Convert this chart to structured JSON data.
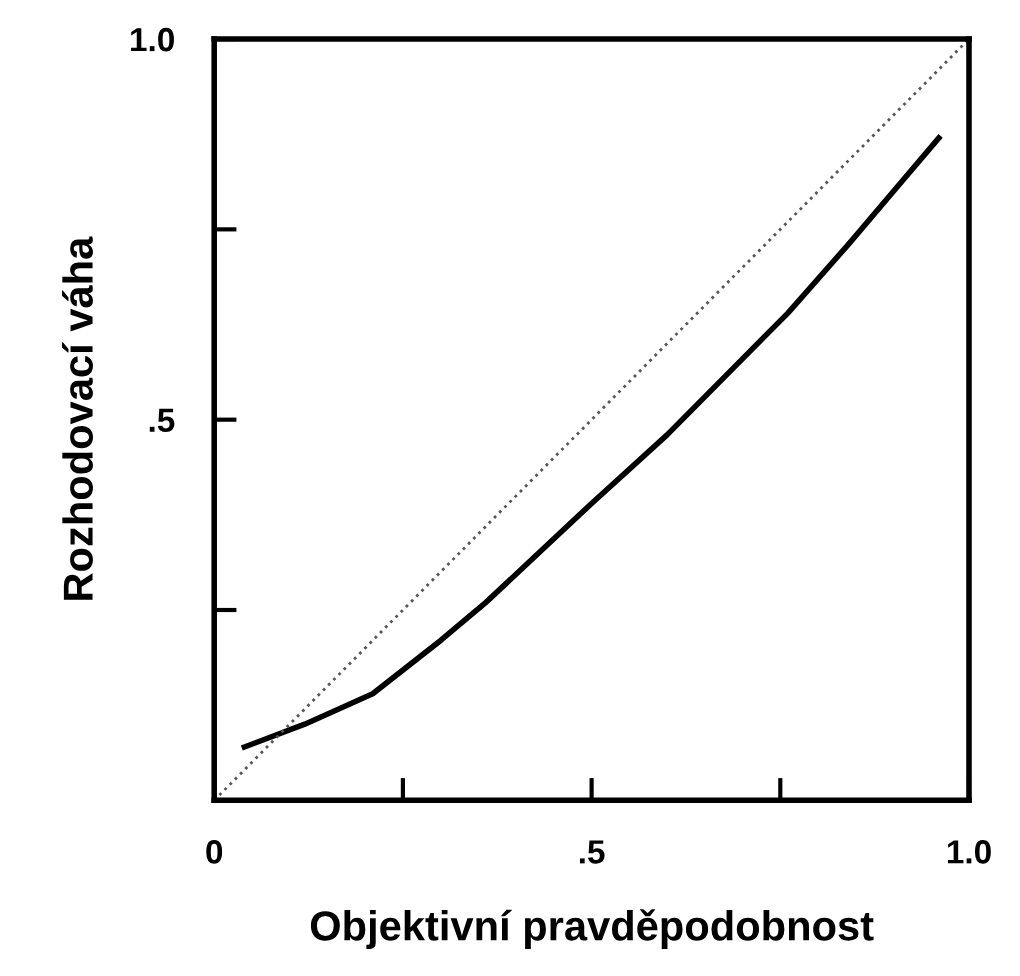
{
  "chart_data": {
    "type": "line",
    "xlabel": "Objektivní pravděpodobnost",
    "ylabel": "Rozhodovací váha",
    "xlim": [
      0,
      1
    ],
    "ylim": [
      0,
      1
    ],
    "xticks": [
      {
        "value": 0,
        "label": "0"
      },
      {
        "value": 0.25,
        "label": null
      },
      {
        "value": 0.5,
        "label": ".5"
      },
      {
        "value": 0.75,
        "label": null
      },
      {
        "value": 1,
        "label": "1.0"
      }
    ],
    "yticks": [
      {
        "value": 0,
        "label": null
      },
      {
        "value": 0.25,
        "label": null
      },
      {
        "value": 0.5,
        "label": ".5"
      },
      {
        "value": 0.75,
        "label": null
      },
      {
        "value": 1,
        "label": "1.0"
      }
    ],
    "grid": false,
    "legend": false,
    "series": [
      {
        "color": "#000000",
        "line_style": "solid",
        "x": [
          0.04,
          0.12,
          0.21,
          0.3,
          0.36,
          0.5,
          0.6,
          0.69,
          0.76,
          0.84,
          0.9,
          0.96
        ],
        "values": [
          0.07,
          0.1,
          0.14,
          0.21,
          0.26,
          0.39,
          0.48,
          0.57,
          0.64,
          0.73,
          0.8,
          0.87
        ]
      },
      {
        "color": "#555555",
        "line_style": "dotted",
        "x": [
          0,
          1
        ],
        "values": [
          0,
          1
        ]
      }
    ]
  }
}
